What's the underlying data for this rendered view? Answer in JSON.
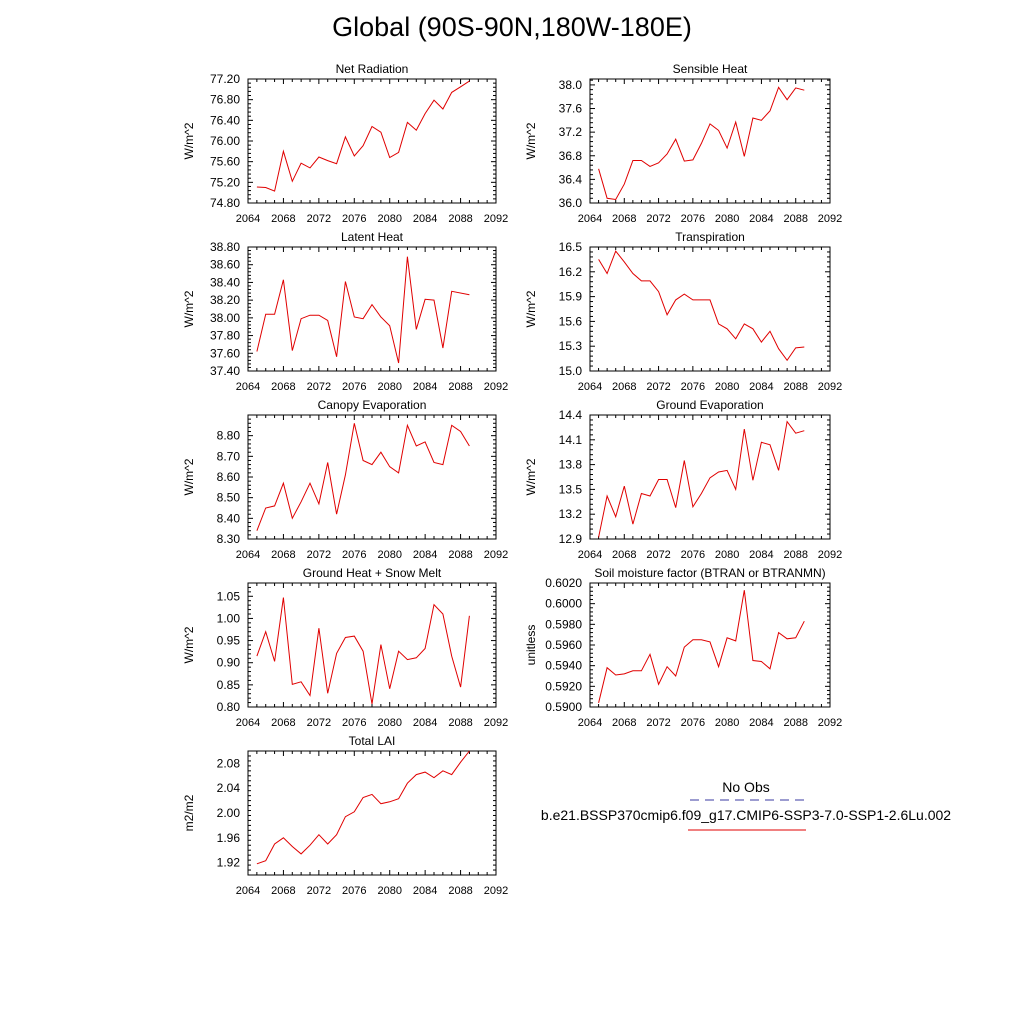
{
  "title": "Global (90S-90N,180W-180E)",
  "legend": {
    "obs_label": "No Obs",
    "obs_color": "#3a3aa0",
    "case_label": "b.e21.BSSP370cmip6.f09_g17.CMIP6-SSP3-7.0-SSP1-2.6Lu.002",
    "case_color": "#e00000"
  },
  "chart_data": [
    {
      "type": "line",
      "title": "Net Radiation",
      "ylabel": "W/m^2",
      "xlim": [
        2064,
        2092
      ],
      "xticks": [
        2064,
        2068,
        2072,
        2076,
        2080,
        2084,
        2088,
        2092
      ],
      "ylim": [
        74.8,
        77.2
      ],
      "yticks": [
        "74.80",
        "75.20",
        "75.60",
        "76.00",
        "76.40",
        "76.80",
        "77.20"
      ],
      "x": [
        2065,
        2066,
        2067,
        2068,
        2069,
        2070,
        2071,
        2072,
        2073,
        2074,
        2075,
        2076,
        2077,
        2078,
        2079,
        2080,
        2081,
        2082,
        2083,
        2084,
        2085,
        2086,
        2087,
        2088,
        2089
      ],
      "series": [
        {
          "values": [
            75.11,
            75.1,
            75.03,
            75.8,
            75.22,
            75.57,
            75.48,
            75.69,
            75.62,
            75.56,
            76.08,
            75.71,
            75.91,
            76.28,
            76.17,
            75.68,
            75.78,
            76.36,
            76.21,
            76.53,
            76.79,
            76.62,
            76.94,
            77.05,
            77.16
          ]
        }
      ]
    },
    {
      "type": "line",
      "title": "Sensible Heat",
      "ylabel": "W/m^2",
      "xlim": [
        2064,
        2092
      ],
      "xticks": [
        2064,
        2068,
        2072,
        2076,
        2080,
        2084,
        2088,
        2092
      ],
      "ylim": [
        36.0,
        38.1
      ],
      "yticks": [
        "36.0",
        "36.4",
        "36.8",
        "37.2",
        "37.6",
        "38.0"
      ],
      "x": [
        2065,
        2066,
        2067,
        2068,
        2069,
        2070,
        2071,
        2072,
        2073,
        2074,
        2075,
        2076,
        2077,
        2078,
        2079,
        2080,
        2081,
        2082,
        2083,
        2084,
        2085,
        2086,
        2087,
        2088,
        2089
      ],
      "series": [
        {
          "values": [
            36.58,
            36.08,
            36.06,
            36.32,
            36.72,
            36.72,
            36.62,
            36.68,
            36.83,
            37.08,
            36.71,
            36.73,
            37.01,
            37.34,
            37.23,
            36.93,
            37.37,
            36.79,
            37.44,
            37.4,
            37.56,
            37.96,
            37.75,
            37.95,
            37.91
          ]
        }
      ]
    },
    {
      "type": "line",
      "title": "Latent Heat",
      "ylabel": "W/m^2",
      "xlim": [
        2064,
        2092
      ],
      "xticks": [
        2064,
        2068,
        2072,
        2076,
        2080,
        2084,
        2088,
        2092
      ],
      "ylim": [
        37.4,
        38.8
      ],
      "yticks": [
        "37.40",
        "37.60",
        "37.80",
        "38.00",
        "38.20",
        "38.40",
        "38.60",
        "38.80"
      ],
      "x": [
        2065,
        2066,
        2067,
        2068,
        2069,
        2070,
        2071,
        2072,
        2073,
        2074,
        2075,
        2076,
        2077,
        2078,
        2079,
        2080,
        2081,
        2082,
        2083,
        2084,
        2085,
        2086,
        2087,
        2089
      ],
      "series": [
        {
          "values": [
            37.62,
            38.04,
            38.04,
            38.43,
            37.63,
            37.99,
            38.03,
            38.03,
            37.97,
            37.56,
            38.41,
            38.01,
            37.99,
            38.15,
            38.01,
            37.91,
            37.49,
            38.69,
            37.87,
            38.21,
            38.2,
            37.66,
            38.3,
            38.26
          ]
        }
      ]
    },
    {
      "type": "line",
      "title": "Transpiration",
      "ylabel": "W/m^2",
      "xlim": [
        2064,
        2092
      ],
      "xticks": [
        2064,
        2068,
        2072,
        2076,
        2080,
        2084,
        2088,
        2092
      ],
      "ylim": [
        15.0,
        16.5
      ],
      "yticks": [
        "15.0",
        "15.3",
        "15.6",
        "15.9",
        "16.2",
        "16.5"
      ],
      "x": [
        2065,
        2066,
        2067,
        2068,
        2069,
        2070,
        2071,
        2072,
        2073,
        2074,
        2075,
        2076,
        2077,
        2078,
        2079,
        2080,
        2081,
        2082,
        2083,
        2084,
        2085,
        2086,
        2087,
        2088,
        2089
      ],
      "series": [
        {
          "values": [
            16.35,
            16.18,
            16.45,
            16.32,
            16.18,
            16.09,
            16.09,
            15.96,
            15.68,
            15.86,
            15.93,
            15.86,
            15.86,
            15.86,
            15.57,
            15.51,
            15.39,
            15.57,
            15.51,
            15.35,
            15.48,
            15.27,
            15.13,
            15.28,
            15.29
          ]
        }
      ]
    },
    {
      "type": "line",
      "title": "Canopy Evaporation",
      "ylabel": "W/m^2",
      "xlim": [
        2064,
        2092
      ],
      "xticks": [
        2064,
        2068,
        2072,
        2076,
        2080,
        2084,
        2088,
        2092
      ],
      "ylim": [
        8.3,
        8.9
      ],
      "yticks": [
        "8.30",
        "8.40",
        "8.50",
        "8.60",
        "8.70",
        "8.80"
      ],
      "x": [
        2065,
        2066,
        2067,
        2068,
        2069,
        2070,
        2071,
        2072,
        2073,
        2074,
        2075,
        2076,
        2077,
        2078,
        2079,
        2080,
        2081,
        2082,
        2083,
        2084,
        2085,
        2086,
        2087,
        2088,
        2089
      ],
      "series": [
        {
          "values": [
            8.34,
            8.45,
            8.46,
            8.57,
            8.4,
            8.48,
            8.57,
            8.47,
            8.67,
            8.42,
            8.61,
            8.86,
            8.68,
            8.66,
            8.72,
            8.65,
            8.62,
            8.85,
            8.75,
            8.77,
            8.67,
            8.66,
            8.85,
            8.82,
            8.75
          ]
        }
      ]
    },
    {
      "type": "line",
      "title": "Ground Evaporation",
      "ylabel": "W/m^2",
      "xlim": [
        2064,
        2092
      ],
      "xticks": [
        2064,
        2068,
        2072,
        2076,
        2080,
        2084,
        2088,
        2092
      ],
      "ylim": [
        12.9,
        14.4
      ],
      "yticks": [
        "12.9",
        "13.2",
        "13.5",
        "13.8",
        "14.1",
        "14.4"
      ],
      "x": [
        2065,
        2066,
        2067,
        2068,
        2069,
        2070,
        2071,
        2072,
        2073,
        2074,
        2075,
        2076,
        2077,
        2078,
        2079,
        2080,
        2081,
        2082,
        2083,
        2084,
        2085,
        2086,
        2087,
        2088,
        2089
      ],
      "series": [
        {
          "values": [
            12.92,
            13.42,
            13.17,
            13.54,
            13.08,
            13.45,
            13.42,
            13.62,
            13.62,
            13.28,
            13.85,
            13.29,
            13.45,
            13.64,
            13.71,
            13.73,
            13.5,
            14.23,
            13.61,
            14.07,
            14.04,
            13.73,
            14.32,
            14.18,
            14.21
          ]
        }
      ]
    },
    {
      "type": "line",
      "title": "Ground Heat + Snow Melt",
      "ylabel": "W/m^2",
      "xlim": [
        2064,
        2092
      ],
      "xticks": [
        2064,
        2068,
        2072,
        2076,
        2080,
        2084,
        2088,
        2092
      ],
      "ylim": [
        0.8,
        1.08
      ],
      "yticks": [
        "0.80",
        "0.85",
        "0.90",
        "0.95",
        "1.00",
        "1.05"
      ],
      "x": [
        2065,
        2066,
        2067,
        2068,
        2069,
        2070,
        2071,
        2072,
        2073,
        2074,
        2075,
        2076,
        2077,
        2078,
        2079,
        2080,
        2081,
        2082,
        2083,
        2084,
        2085,
        2086,
        2087,
        2088,
        2089
      ],
      "series": [
        {
          "values": [
            0.915,
            0.97,
            0.903,
            1.047,
            0.851,
            0.857,
            0.826,
            0.978,
            0.831,
            0.921,
            0.957,
            0.96,
            0.926,
            0.807,
            0.941,
            0.841,
            0.926,
            0.907,
            0.911,
            0.932,
            1.031,
            1.01,
            0.915,
            0.845,
            1.006
          ]
        }
      ]
    },
    {
      "type": "line",
      "title": "Soil moisture factor (BTRAN or BTRANMN)",
      "ylabel": "unitless",
      "xlim": [
        2064,
        2092
      ],
      "xticks": [
        2064,
        2068,
        2072,
        2076,
        2080,
        2084,
        2088,
        2092
      ],
      "ylim": [
        0.59,
        0.602
      ],
      "yticks": [
        "0.5900",
        "0.5920",
        "0.5940",
        "0.5960",
        "0.5980",
        "0.6000",
        "0.6020"
      ],
      "x": [
        2065,
        2066,
        2067,
        2068,
        2069,
        2070,
        2071,
        2072,
        2073,
        2074,
        2075,
        2076,
        2077,
        2078,
        2079,
        2080,
        2081,
        2082,
        2083,
        2084,
        2085,
        2086,
        2087,
        2088,
        2089
      ],
      "series": [
        {
          "values": [
            0.5904,
            0.5938,
            0.5931,
            0.5932,
            0.5935,
            0.5935,
            0.5951,
            0.5922,
            0.5939,
            0.593,
            0.5958,
            0.5965,
            0.5965,
            0.5963,
            0.5939,
            0.5967,
            0.5964,
            0.6013,
            0.5945,
            0.5944,
            0.5937,
            0.5972,
            0.5966,
            0.5967,
            0.5983
          ]
        }
      ]
    },
    {
      "type": "line",
      "title": "Total LAI",
      "ylabel": "m2/m2",
      "xlim": [
        2064,
        2092
      ],
      "xticks": [
        2064,
        2068,
        2072,
        2076,
        2080,
        2084,
        2088,
        2092
      ],
      "ylim": [
        1.9,
        2.1
      ],
      "yticks": [
        "1.92",
        "1.96",
        "2.00",
        "2.04",
        "2.08"
      ],
      "x": [
        2065,
        2066,
        2067,
        2068,
        2069,
        2070,
        2071,
        2072,
        2073,
        2074,
        2075,
        2076,
        2077,
        2078,
        2079,
        2080,
        2081,
        2082,
        2083,
        2084,
        2085,
        2086,
        2087,
        2088,
        2089
      ],
      "series": [
        {
          "values": [
            1.918,
            1.923,
            1.95,
            1.96,
            1.946,
            1.934,
            1.948,
            1.965,
            1.95,
            1.965,
            1.994,
            2.002,
            2.025,
            2.03,
            2.015,
            2.018,
            2.023,
            2.048,
            2.062,
            2.066,
            2.057,
            2.068,
            2.062,
            2.082,
            2.1
          ]
        }
      ]
    }
  ]
}
